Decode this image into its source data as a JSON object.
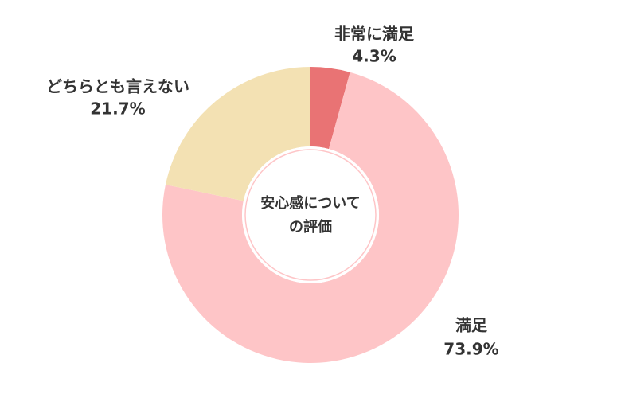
{
  "chart_data": {
    "type": "donut",
    "center_text": [
      "安心感について",
      "の評価"
    ],
    "categories": [
      "非常に満足",
      "満足",
      "どちらとも言えない"
    ],
    "values": [
      4.3,
      73.9,
      21.7
    ],
    "value_labels": [
      "4.3%",
      "73.9%",
      "21.7%"
    ],
    "colors": [
      "#e97374",
      "#fec5c7",
      "#f3e1b3"
    ]
  }
}
